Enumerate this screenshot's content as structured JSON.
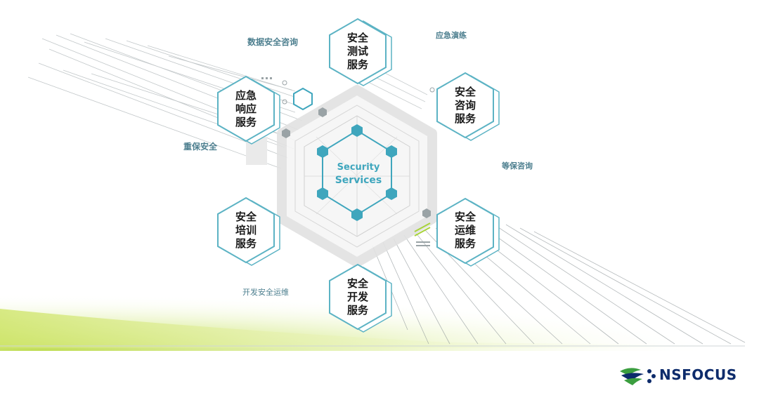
{
  "center": {
    "line1": "Security",
    "line2": "Services"
  },
  "services": [
    {
      "id": "test",
      "lines": [
        "安全",
        "测试",
        "服务"
      ]
    },
    {
      "id": "consult",
      "lines": [
        "安全",
        "咨询",
        "服务"
      ]
    },
    {
      "id": "ops",
      "lines": [
        "安全",
        "运维",
        "服务"
      ]
    },
    {
      "id": "dev",
      "lines": [
        "安全",
        "开发",
        "服务"
      ]
    },
    {
      "id": "training",
      "lines": [
        "安全",
        "培训",
        "服务"
      ]
    },
    {
      "id": "emergency",
      "lines": [
        "应急",
        "响应",
        "服务"
      ]
    }
  ],
  "annotations": {
    "data_security_consulting": "数据安全咨询",
    "emergency_drill": "应急演练",
    "key_protection": "重保安全",
    "classified_protection_consulting": "等保咨询",
    "dev_security_ops": "开发安全运维"
  },
  "brand": {
    "name": "NSFOCUS"
  },
  "colors": {
    "accent": "#3fa6bd",
    "hex_stroke": "#5cb3c4",
    "green": "#a8d33a",
    "annotation": "#4d7f8f",
    "brand": "#0d2b6b"
  }
}
